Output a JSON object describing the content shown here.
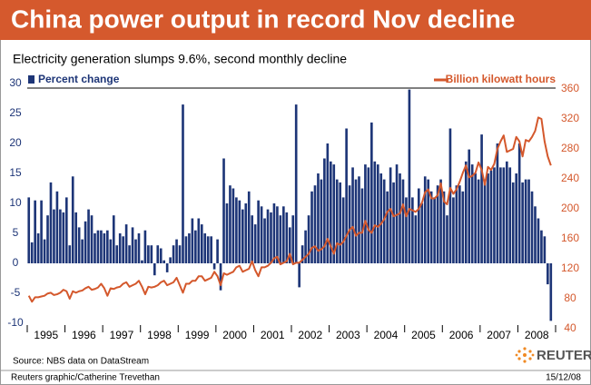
{
  "chart_data": {
    "type": "bar_line",
    "title": "China power output in record Nov decline",
    "subtitle": "Electricity generation slumps 9.6%, second monthly decline",
    "source": "Source: NBS data on DataStream",
    "credit": "Reuters graphic/Catherine Trevethan",
    "date": "15/12/08",
    "logo": "REUTERS",
    "categories": [
      "1995",
      null,
      null,
      null,
      null,
      null,
      null,
      null,
      null,
      null,
      null,
      null,
      "1996",
      null,
      null,
      null,
      null,
      null,
      null,
      null,
      null,
      null,
      null,
      null,
      "1997",
      null,
      null,
      null,
      null,
      null,
      null,
      null,
      null,
      null,
      null,
      null,
      "1998",
      null,
      null,
      null,
      null,
      null,
      null,
      null,
      null,
      null,
      null,
      null,
      "1999",
      null,
      null,
      null,
      null,
      null,
      null,
      null,
      null,
      null,
      null,
      null,
      "2000",
      null,
      null,
      null,
      null,
      null,
      null,
      null,
      null,
      null,
      null,
      null,
      "2001",
      null,
      null,
      null,
      null,
      null,
      null,
      null,
      null,
      null,
      null,
      null,
      "2002",
      null,
      null,
      null,
      null,
      null,
      null,
      null,
      null,
      null,
      null,
      null,
      "2003",
      null,
      null,
      null,
      null,
      null,
      null,
      null,
      null,
      null,
      null,
      null,
      "2004",
      null,
      null,
      null,
      null,
      null,
      null,
      null,
      null,
      null,
      null,
      null,
      "2005",
      null,
      null,
      null,
      null,
      null,
      null,
      null,
      null,
      null,
      null,
      null,
      "2006",
      null,
      null,
      null,
      null,
      null,
      null,
      null,
      null,
      null,
      null,
      null,
      "2007",
      null,
      null,
      null,
      null,
      null,
      null,
      null,
      null,
      null,
      null,
      null,
      "2008",
      null,
      null,
      null,
      null,
      null,
      null,
      null,
      null,
      null,
      null
    ],
    "series": [
      {
        "name": "Percent change",
        "type": "bar",
        "color": "#1d3577",
        "axis": "y",
        "values": [
          11,
          3.5,
          10.5,
          5,
          10.5,
          4,
          8,
          13.5,
          9,
          12,
          9,
          8.5,
          11,
          3,
          14.5,
          8.5,
          6,
          4,
          7,
          9,
          8,
          5,
          5.5,
          5.5,
          5,
          5.5,
          4,
          8,
          3,
          5,
          4.5,
          6.5,
          3,
          6,
          4,
          5,
          0.5,
          5.5,
          3,
          3,
          -2,
          3,
          2.5,
          0.5,
          -1.5,
          1,
          3,
          4,
          3,
          26.5,
          4.5,
          5,
          7.5,
          5.5,
          7.5,
          6.5,
          5,
          4.5,
          4.5,
          -1,
          4,
          -4.5,
          17.5,
          10,
          13,
          12.5,
          11,
          10.5,
          9,
          10,
          12,
          8,
          6.5,
          10.5,
          9.5,
          7.5,
          9,
          8.5,
          10,
          9.5,
          8,
          9.5,
          8.5,
          6,
          8,
          26.5,
          -4,
          3,
          5.5,
          8,
          12,
          13,
          15,
          14,
          17.5,
          20,
          17,
          16.5,
          14,
          13.5,
          11,
          22.5,
          13,
          16,
          14,
          14.5,
          12.5,
          16.5,
          16,
          23.5,
          17,
          16.5,
          15,
          14,
          12,
          16,
          13.5,
          16.5,
          15,
          14,
          11,
          29,
          11,
          8,
          12.5,
          10,
          14.5,
          14,
          12,
          11,
          13,
          14,
          12,
          8,
          22.5,
          11,
          13,
          13,
          12,
          17,
          19,
          16.5,
          15,
          14,
          21.5,
          14,
          15,
          15.5,
          16,
          20,
          16,
          16,
          17,
          16,
          13.5,
          15,
          20,
          13.5,
          14,
          14,
          12,
          9.5,
          7.5,
          5.5,
          4.5,
          -3.5,
          -9.6
        ]
      },
      {
        "name": "Billion kilowatt hours",
        "type": "line",
        "color": "#d4582c",
        "axis": "y2",
        "values": [
          84,
          76,
          82,
          82,
          83,
          84,
          87,
          88,
          85,
          86,
          88,
          92,
          90,
          80,
          90,
          88,
          90,
          91,
          94,
          96,
          92,
          93,
          95,
          100,
          94,
          84,
          94,
          93,
          95,
          96,
          100,
          102,
          96,
          98,
          100,
          104,
          96,
          86,
          96,
          95,
          96,
          98,
          102,
          104,
          98,
          100,
          102,
          108,
          98,
          88,
          100,
          100,
          104,
          104,
          110,
          110,
          104,
          106,
          108,
          116,
          110,
          98,
          114,
          112,
          114,
          116,
          122,
          124,
          116,
          118,
          120,
          130,
          118,
          110,
          122,
          122,
          124,
          128,
          134,
          136,
          126,
          128,
          130,
          140,
          126,
          128,
          128,
          132,
          136,
          140,
          148,
          150,
          144,
          146,
          150,
          160,
          150,
          140,
          154,
          152,
          156,
          164,
          172,
          176,
          164,
          168,
          168,
          184,
          172,
          168,
          178,
          176,
          180,
          186,
          196,
          200,
          190,
          192,
          194,
          206,
          190,
          200,
          198,
          196,
          200,
          208,
          222,
          226,
          214,
          214,
          218,
          234,
          210,
          206,
          228,
          220,
          226,
          236,
          248,
          258,
          242,
          244,
          248,
          262,
          252,
          232,
          256,
          252,
          260,
          280,
          290,
          298,
          276,
          278,
          280,
          296,
          290,
          270,
          292,
          290,
          296,
          304,
          322,
          320,
          290,
          270,
          258
        ]
      }
    ],
    "ylim": [
      -10,
      30
    ],
    "yticks": [
      -10,
      -5,
      0,
      5,
      10,
      15,
      20,
      25,
      30
    ],
    "y2lim": [
      40,
      360
    ],
    "y2ticks": [
      40,
      80,
      120,
      160,
      200,
      240,
      280,
      320,
      360
    ]
  }
}
